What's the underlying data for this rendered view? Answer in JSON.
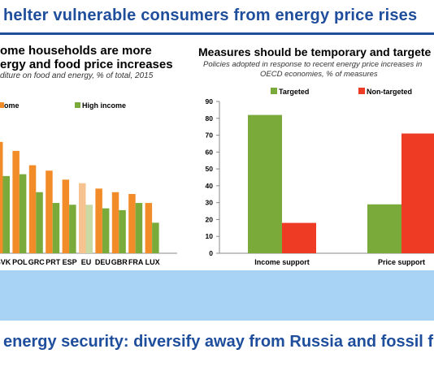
{
  "header": {
    "title": "helter vulnerable consumers from energy price rises"
  },
  "left_panel": {
    "title_line1": "ome households are more",
    "title_line2": "ergy and food price increases",
    "subtitle": "diture on food and energy, % of total, 2015"
  },
  "right_panel": {
    "title": "Measures should be temporary and targete",
    "subtitle_line1": "Policies adopted in response to recent energy price increases in",
    "subtitle_line2": "OECD economies, % of measures"
  },
  "footer": {
    "title": "energy security: diversify away from Russia and fossil fu"
  },
  "colors": {
    "orange": "#f28c28",
    "green": "#7aab3a",
    "light_orange": "#f6c28f",
    "light_green": "#c8d9a4",
    "red": "#ee3b24",
    "title_blue": "#1f4e9c",
    "band_blue": "#a9d3f5"
  },
  "chart_data": [
    {
      "type": "bar",
      "legend": [
        "ome",
        "High income"
      ],
      "legend_placement": "top",
      "categories": [
        "SVK",
        "POL",
        "GRC",
        "PRT",
        "ESP",
        "EU",
        "DEU",
        "GBR",
        "FRA",
        "LUX"
      ],
      "series": [
        {
          "name": "ome",
          "values": [
            31,
            28.5,
            24.5,
            23,
            20.5,
            19.5,
            18,
            17,
            16.5,
            14
          ]
        },
        {
          "name": "High income",
          "values": [
            21.5,
            22,
            17,
            14,
            13.5,
            13.5,
            12.5,
            12,
            14,
            8.5
          ]
        }
      ],
      "highlight_category": "EU",
      "ylim": [
        0,
        40
      ]
    },
    {
      "type": "bar",
      "legend": [
        "Targeted",
        "Non-targeted"
      ],
      "legend_placement": "top",
      "categories": [
        "Income support",
        "Price support"
      ],
      "series": [
        {
          "name": "Targeted",
          "values": [
            82,
            29
          ]
        },
        {
          "name": "Non-targeted",
          "values": [
            18,
            71
          ]
        }
      ],
      "yticks": [
        "0",
        "10",
        "20",
        "30",
        "40",
        "50",
        "60",
        "70",
        "80",
        "90"
      ],
      "ylim": [
        0,
        90
      ],
      "grid": false
    }
  ]
}
